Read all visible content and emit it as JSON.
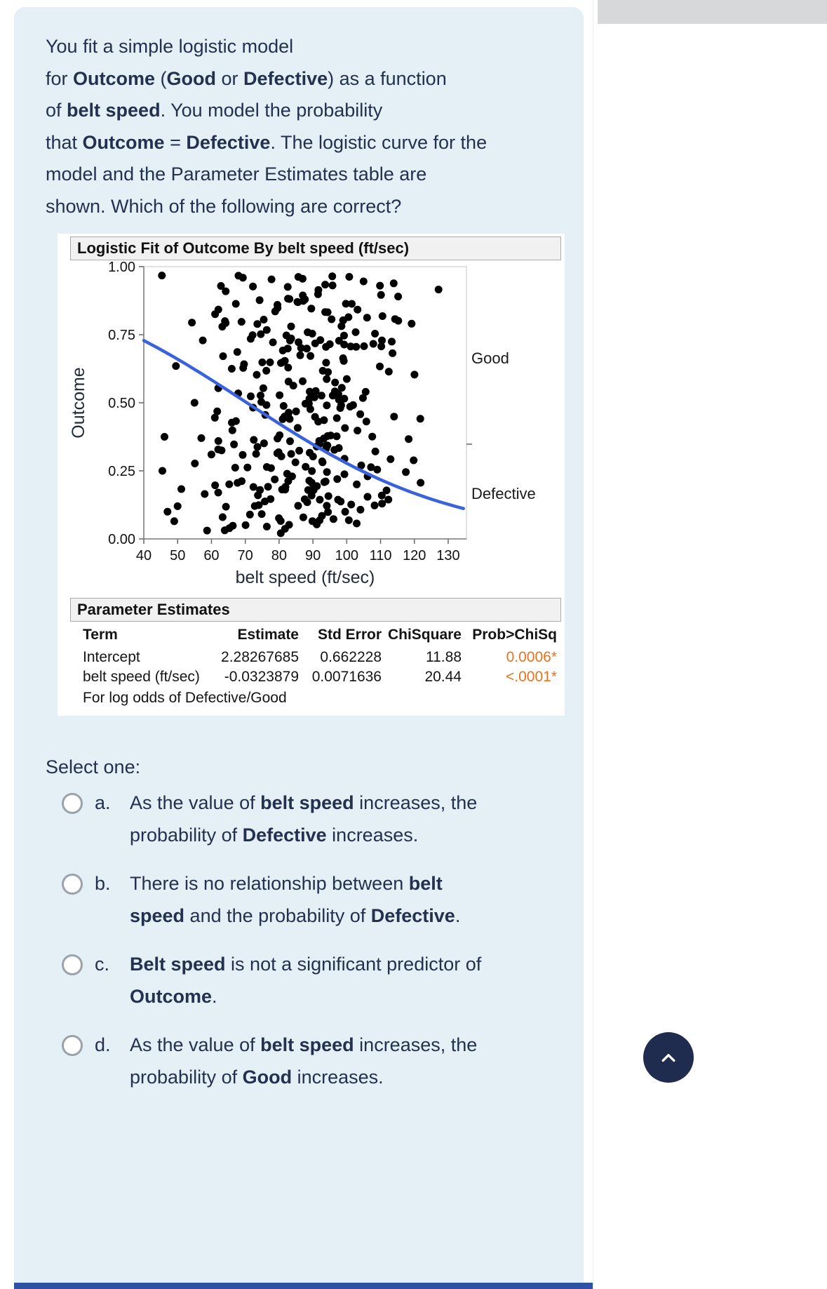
{
  "colors": {
    "card_bg": "#e4eff6",
    "text": "#23314f",
    "curve_blue": "#3a62dd",
    "dot_black": "#000000",
    "pvalue_orange": "#e8731e",
    "scroll_button_bg": "#1f2c4f",
    "footer_bar_blue": "#2d51a3"
  },
  "question": {
    "segments": [
      {
        "t": "You fit a simple logistic model\nfor "
      },
      {
        "t": "Outcome",
        "b": true
      },
      {
        "t": " ("
      },
      {
        "t": "Good",
        "b": true
      },
      {
        "t": " or "
      },
      {
        "t": "Defective",
        "b": true
      },
      {
        "t": ") as a function\nof "
      },
      {
        "t": "belt speed",
        "b": true
      },
      {
        "t": ". You model the probability\nthat "
      },
      {
        "t": "Outcome",
        "b": true
      },
      {
        "t": " = "
      },
      {
        "t": "Defective",
        "b": true
      },
      {
        "t": ". The logistic curve for the\nmodel and the Parameter Estimates table are\nshown. Which of the following are correct?"
      }
    ]
  },
  "chart_data": {
    "type": "scatter",
    "title": "Logistic Fit of Outcome By belt speed (ft/sec)",
    "xlabel": "belt speed (ft/sec)",
    "ylabel": "Outcome",
    "xlim": [
      40,
      135.4
    ],
    "ylim": [
      0,
      1
    ],
    "xticks": [
      40,
      50,
      60,
      70,
      80,
      90,
      100,
      110,
      120,
      130
    ],
    "yticks": [
      "0.00",
      "0.25",
      "0.50",
      "0.75",
      "1.00"
    ],
    "grid": false,
    "curve": {
      "type": "logistic",
      "intercept": 2.28267685,
      "slope": -0.0323879,
      "color": "#3a62dd",
      "note": "P(Defective) = 1/(1+exp(-(2.28267685 - 0.0323879*x)))"
    },
    "labels_right": [
      {
        "text": "Good",
        "y": 0.665
      },
      {
        "text": "Defective",
        "y": 0.168
      }
    ],
    "divider_y": 0.348,
    "scatter": {
      "seed": 9,
      "count": 300,
      "x_mean": 88,
      "x_sd": 17,
      "x_min": 44,
      "x_max": 128,
      "y_min": 0.02,
      "y_max": 0.97,
      "dot_radius": 5.5,
      "color": "#000000",
      "extra": [
        [
          45.5,
          0.25
        ],
        [
          49.5,
          0.635
        ],
        [
          50,
          0.12
        ],
        [
          49,
          0.065
        ],
        [
          47,
          0.1
        ],
        [
          55,
          0.5
        ],
        [
          57,
          0.37
        ],
        [
          61,
          0.445
        ],
        [
          60,
          0.31
        ],
        [
          63,
          0.325
        ],
        [
          58,
          0.165
        ],
        [
          62,
          0.17
        ],
        [
          64,
          0.8
        ],
        [
          66,
          0.625
        ]
      ]
    }
  },
  "param_table": {
    "title": "Parameter Estimates",
    "columns": [
      "Term",
      "Estimate",
      "Std Error",
      "ChiSquare",
      "Prob>ChiSq"
    ],
    "rows": [
      {
        "term": "Intercept",
        "estimate": "2.28267685",
        "std_error": "0.662228",
        "chisquare": "11.88",
        "prob": "0.0006*"
      },
      {
        "term": "belt speed (ft/sec)",
        "estimate": "-0.0323879",
        "std_error": "0.0071636",
        "chisquare": "20.44",
        "prob": "<.0001*"
      }
    ],
    "footnote": "For log odds of Defective/Good",
    "prob_color": "#e8731e"
  },
  "select_label": "Select one:",
  "options": [
    {
      "letter": "a.",
      "segments": [
        {
          "t": "As the value of "
        },
        {
          "t": "belt speed",
          "b": true
        },
        {
          "t": " increases, the\nprobability of "
        },
        {
          "t": "Defective",
          "b": true
        },
        {
          "t": " increases."
        }
      ]
    },
    {
      "letter": "b.",
      "segments": [
        {
          "t": "There is no relationship between "
        },
        {
          "t": "belt\nspeed",
          "b": true
        },
        {
          "t": " and the probability of "
        },
        {
          "t": "Defective",
          "b": true
        },
        {
          "t": "."
        }
      ]
    },
    {
      "letter": "c.",
      "segments": [
        {
          "t": "Belt speed",
          "b": true
        },
        {
          "t": " is not a significant predictor of\n"
        },
        {
          "t": "Outcome",
          "b": true
        },
        {
          "t": "."
        }
      ]
    },
    {
      "letter": "d.",
      "segments": [
        {
          "t": "As the value of "
        },
        {
          "t": "belt speed",
          "b": true
        },
        {
          "t": " increases, the\nprobability of "
        },
        {
          "t": "Good",
          "b": true
        },
        {
          "t": " increases."
        }
      ]
    }
  ],
  "scroll_button": {
    "icon": "chevron-up"
  }
}
